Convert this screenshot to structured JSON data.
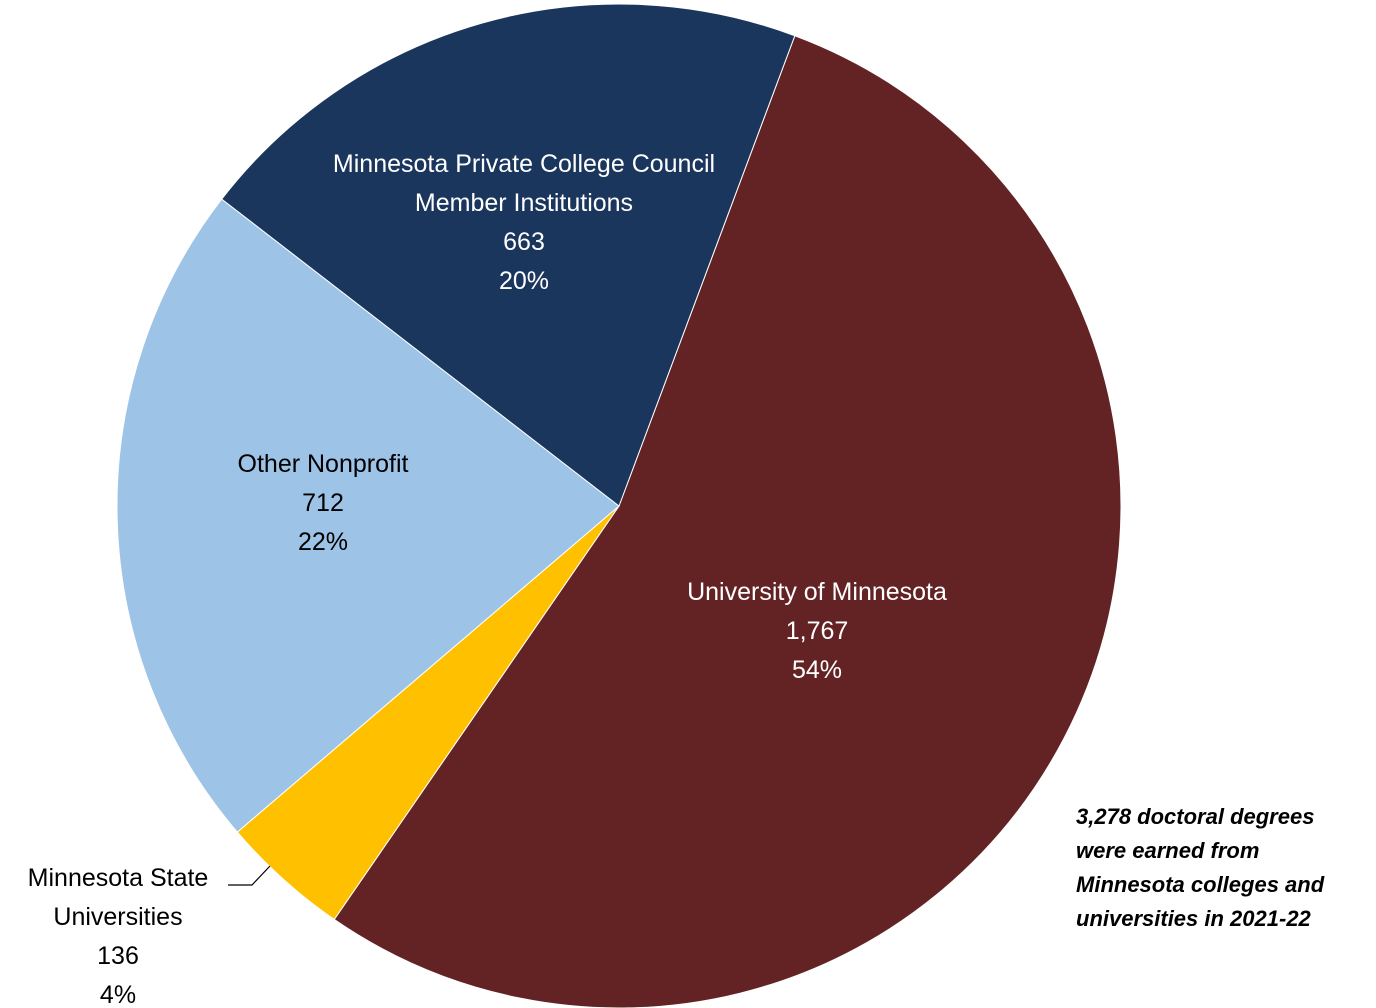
{
  "chart_data": {
    "type": "pie",
    "title": "",
    "total": 3278,
    "slices": [
      {
        "label_lines": [
          "University of Minnesota"
        ],
        "value": 1767,
        "value_label": "1,767",
        "percent_label": "54%",
        "color": "#632325",
        "label_color": "#ffffff"
      },
      {
        "label_lines": [
          "Minnesota State",
          "Universities"
        ],
        "value": 136,
        "value_label": "136",
        "percent_label": "4%",
        "color": "#ffc000",
        "label_color": "#000000",
        "label_outside": true
      },
      {
        "label_lines": [
          "Other Nonprofit"
        ],
        "value": 712,
        "value_label": "712",
        "percent_label": "22%",
        "color": "#9dc3e6",
        "label_color": "#000000"
      },
      {
        "label_lines": [
          "Minnesota Private College Council",
          "Member Institutions"
        ],
        "value": 663,
        "value_label": "663",
        "percent_label": "20%",
        "color": "#1b365d",
        "label_color": "#ffffff"
      }
    ],
    "annotation_lines": [
      "3,278 doctoral degrees",
      "were earned from",
      "Minnesota colleges and",
      "universities in 2021-22"
    ]
  }
}
